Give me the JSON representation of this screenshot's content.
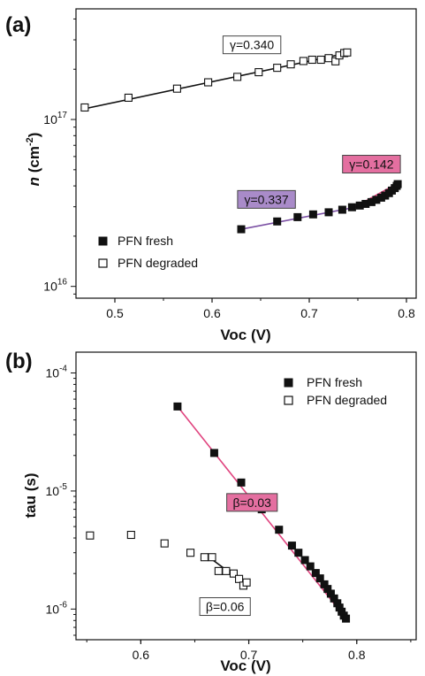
{
  "chart_data": [
    {
      "panel_label": "(a)",
      "type": "scatter",
      "xlabel": "Voc (V)",
      "ylabel": "n (cm-2)",
      "ylabel_italic": "n",
      "ylabel_unit": " (cm",
      "ylabel_exp": "-2",
      "ylabel_close": ")",
      "xlim": [
        0.46,
        0.81
      ],
      "ylim": [
        8500000000000000.0,
        4.6e+17
      ],
      "yscale": "log",
      "xticks": [
        0.5,
        0.6,
        0.7,
        0.8
      ],
      "xtick_labels": [
        "0.5",
        "0.6",
        "0.7",
        "0.8"
      ],
      "yticks": [
        {
          "value": 1e+16,
          "base": "10",
          "exp": "16"
        },
        {
          "value": 1e+17,
          "base": "10",
          "exp": "17"
        }
      ],
      "legend": {
        "position": "bottom-left"
      },
      "series": [
        {
          "name": "PFN fresh",
          "marker": "filled-square",
          "x": [
            0.63,
            0.667,
            0.688,
            0.704,
            0.72,
            0.734,
            0.744,
            0.752,
            0.758,
            0.764,
            0.769,
            0.774,
            0.778,
            0.782,
            0.785,
            0.788,
            0.79,
            0.791
          ],
          "y": [
            2.2e+16,
            2.45e+16,
            2.6e+16,
            2.7e+16,
            2.78e+16,
            2.88e+16,
            2.98e+16,
            3.05e+16,
            3.12e+16,
            3.2e+16,
            3.3e+16,
            3.4e+16,
            3.5e+16,
            3.62e+16,
            3.75e+16,
            3.88e+16,
            4e+16,
            4.1e+16
          ]
        },
        {
          "name": "PFN degraded",
          "marker": "open-square",
          "x": [
            0.469,
            0.514,
            0.564,
            0.596,
            0.626,
            0.648,
            0.667,
            0.681,
            0.694,
            0.703,
            0.712,
            0.72,
            0.727,
            0.731,
            0.736,
            0.739
          ],
          "y": [
            1.18e+17,
            1.35e+17,
            1.53e+17,
            1.67e+17,
            1.8e+17,
            1.92e+17,
            2.04e+17,
            2.14e+17,
            2.24e+17,
            2.28e+17,
            2.28e+17,
            2.33e+17,
            2.23e+17,
            2.42e+17,
            2.5e+17,
            2.52e+17
          ]
        }
      ],
      "fit_lines": [
        {
          "color": "#111111",
          "x": [
            0.469,
            0.739
          ],
          "y": [
            1.16e+17,
            2.5e+17
          ]
        },
        {
          "color": "#7a4fa3",
          "x": [
            0.63,
            0.75
          ],
          "y": [
            2.2e+16,
            3e+16
          ]
        },
        {
          "color": "#e0447f",
          "x": [
            0.745,
            0.791
          ],
          "y": [
            2.95e+16,
            4.15e+16
          ]
        }
      ],
      "annotations": [
        {
          "text": "γ=0.340",
          "x": 0.641,
          "y": 2.8e+17,
          "box": "none"
        },
        {
          "text": "γ=0.142",
          "x": 0.764,
          "y": 5.4e+16,
          "box": "#e46fa0"
        },
        {
          "text": "γ=0.337",
          "x": 0.656,
          "y": 3.32e+16,
          "box": "#a98bc9"
        }
      ]
    },
    {
      "panel_label": "(b)",
      "type": "scatter",
      "xlabel": "Voc (V)",
      "ylabel": "tau (s)",
      "xlim": [
        0.54,
        0.855
      ],
      "ylim": [
        5.5e-07,
        0.00015
      ],
      "yscale": "log",
      "xticks": [
        0.6,
        0.7,
        0.8
      ],
      "xtick_labels": [
        "0.6",
        "0.7",
        "0.8"
      ],
      "yticks": [
        {
          "value": 1e-06,
          "base": "10",
          "exp": "-6"
        },
        {
          "value": 1e-05,
          "base": "10",
          "exp": "-5"
        },
        {
          "value": 0.0001,
          "base": "10",
          "exp": "-4"
        }
      ],
      "legend": {
        "position": "top-right"
      },
      "series": [
        {
          "name": "PFN fresh",
          "marker": "filled-square",
          "x": [
            0.634,
            0.668,
            0.693,
            0.712,
            0.728,
            0.74,
            0.746,
            0.752,
            0.757,
            0.762,
            0.766,
            0.77,
            0.773,
            0.776,
            0.779,
            0.782,
            0.784,
            0.786,
            0.788,
            0.79
          ],
          "y": [
            5.2e-05,
            2.1e-05,
            1.18e-05,
            7e-06,
            4.7e-06,
            3.45e-06,
            3e-06,
            2.6e-06,
            2.3e-06,
            2.02e-06,
            1.82e-06,
            1.62e-06,
            1.48e-06,
            1.35e-06,
            1.23e-06,
            1.12e-06,
            1.03e-06,
            9.5e-07,
            8.8e-07,
            8.3e-07
          ]
        },
        {
          "name": "PFN degraded",
          "marker": "open-square",
          "x": [
            0.553,
            0.591,
            0.622,
            0.646,
            0.659,
            0.666,
            0.672,
            0.679,
            0.686,
            0.691,
            0.695,
            0.698
          ],
          "y": [
            4.2e-06,
            4.25e-06,
            3.6e-06,
            3e-06,
            2.75e-06,
            2.75e-06,
            2.1e-06,
            2.1e-06,
            2e-06,
            1.8e-06,
            1.58e-06,
            1.68e-06
          ]
        }
      ],
      "fit_lines": [
        {
          "color": "#e0447f",
          "x": [
            0.634,
            0.79
          ],
          "y": [
            5.2e-05,
            8.3e-07
          ]
        },
        {
          "color": "#111111",
          "x": [
            0.662,
            0.698
          ],
          "y": [
            2.8e-06,
            1.6e-06
          ]
        }
      ],
      "annotations": [
        {
          "text": "β=0.03",
          "x": 0.703,
          "y": 8e-06,
          "box": "#e46fa0"
        },
        {
          "text": "β=0.06",
          "x": 0.678,
          "y": 1.05e-06,
          "box": "none"
        }
      ]
    }
  ]
}
